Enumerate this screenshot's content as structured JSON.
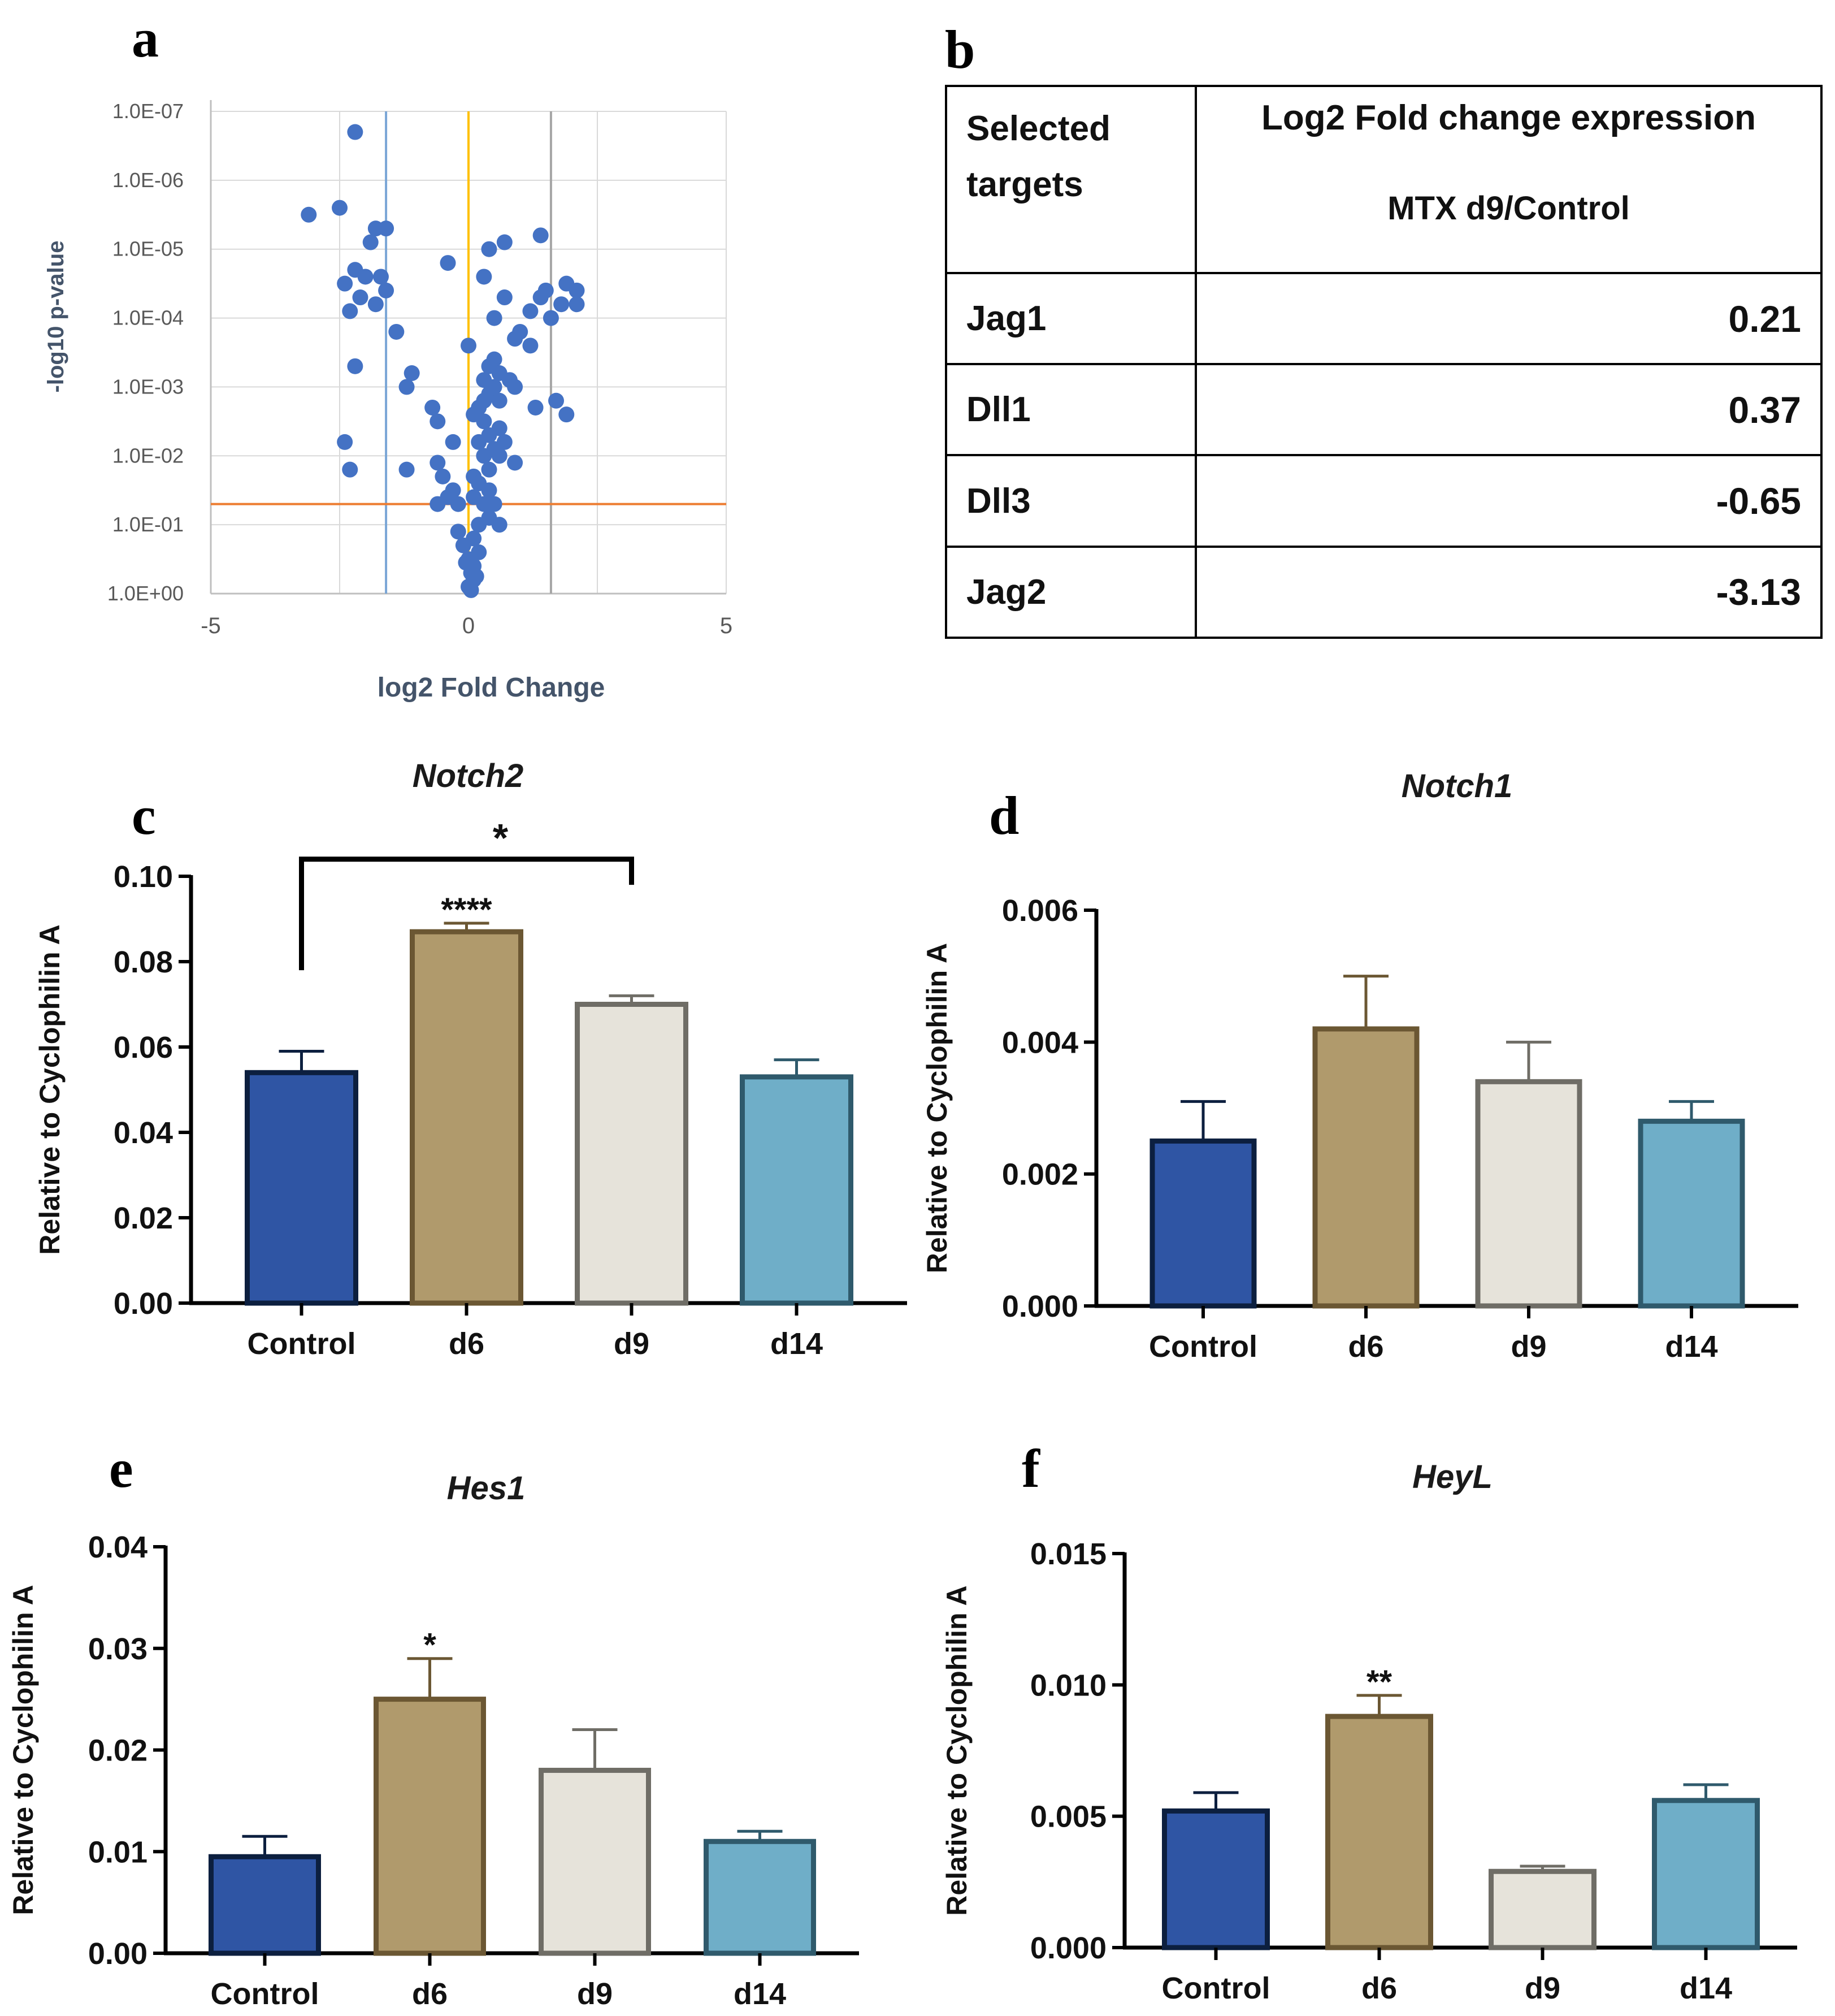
{
  "panels": {
    "a": "a",
    "b": "b",
    "c": "c",
    "d": "d",
    "e": "e",
    "f": "f"
  },
  "table_b": {
    "header_col1": "Selected targets",
    "header_col2": "Log2 Fold change expression",
    "header_col2_sub": "MTX d9/Control",
    "rows": [
      {
        "target": "Jag1",
        "value": "0.21"
      },
      {
        "target": "Dll1",
        "value": "0.37"
      },
      {
        "target": "Dll3",
        "value": "-0.65"
      },
      {
        "target": "Jag2",
        "value": "-3.13"
      }
    ]
  },
  "colors": {
    "volcano_points": "#4472c4",
    "volcano_grid": "#d9d9d9",
    "threshold_blue": "#7aa6d6",
    "threshold_yellow": "#ffc000",
    "threshold_gray": "#a6a6a6",
    "threshold_orange": "#ed7d31",
    "axis_label_volcano": "#44546a",
    "bar_control": "#2f55a4",
    "bar_d6": "#b09a6c",
    "bar_d9": "#e6e3da",
    "bar_d14": "#6faec8"
  },
  "chart_data": [
    {
      "id": "a",
      "type": "scatter",
      "title": "",
      "xlabel": "log2 Fold Change",
      "ylabel": "-log10 p-value",
      "xlim": [
        -5,
        5
      ],
      "ylim": [
        0,
        7
      ],
      "xticks": [
        "-5",
        "0",
        "5"
      ],
      "yticks": [
        "1.0E+00",
        "1.0E-01",
        "1.0E-02",
        "1.0E-03",
        "1.0E-04",
        "1.0E-05",
        "1.0E-06",
        "1.0E-07"
      ],
      "vlines": [
        -1.6,
        0,
        1.6
      ],
      "hline": 1.3,
      "points": [
        [
          -2.2,
          6.7
        ],
        [
          -2.5,
          5.6
        ],
        [
          -3.1,
          5.5
        ],
        [
          -1.8,
          5.3
        ],
        [
          -1.6,
          5.3
        ],
        [
          -1.9,
          5.1
        ],
        [
          -2.2,
          4.7
        ],
        [
          -2.0,
          4.6
        ],
        [
          -1.7,
          4.6
        ],
        [
          -2.4,
          4.5
        ],
        [
          -2.1,
          4.3
        ],
        [
          -1.6,
          4.4
        ],
        [
          -1.8,
          4.2
        ],
        [
          -2.3,
          4.1
        ],
        [
          -1.4,
          3.8
        ],
        [
          -2.2,
          3.3
        ],
        [
          -1.1,
          3.2
        ],
        [
          -1.2,
          3.0
        ],
        [
          -2.4,
          2.2
        ],
        [
          -2.3,
          1.8
        ],
        [
          -1.2,
          1.8
        ],
        [
          -0.7,
          2.7
        ],
        [
          -0.6,
          2.5
        ],
        [
          -0.6,
          1.9
        ],
        [
          -0.3,
          2.2
        ],
        [
          -0.5,
          1.7
        ],
        [
          -0.4,
          1.4
        ],
        [
          -0.6,
          1.3
        ],
        [
          -0.2,
          1.3
        ],
        [
          -0.3,
          1.5
        ],
        [
          -0.4,
          4.8
        ],
        [
          0.4,
          5.0
        ],
        [
          0.7,
          5.1
        ],
        [
          1.4,
          5.2
        ],
        [
          0.3,
          4.6
        ],
        [
          0.7,
          4.3
        ],
        [
          0.5,
          4.0
        ],
        [
          0.0,
          3.6
        ],
        [
          1.4,
          4.3
        ],
        [
          1.5,
          4.4
        ],
        [
          1.9,
          4.5
        ],
        [
          2.1,
          4.4
        ],
        [
          2.1,
          4.2
        ],
        [
          1.8,
          4.2
        ],
        [
          1.2,
          4.1
        ],
        [
          1.6,
          4.0
        ],
        [
          1.0,
          3.8
        ],
        [
          0.9,
          3.7
        ],
        [
          1.2,
          3.6
        ],
        [
          0.5,
          3.4
        ],
        [
          0.4,
          3.3
        ],
        [
          0.6,
          3.2
        ],
        [
          0.3,
          3.1
        ],
        [
          0.8,
          3.1
        ],
        [
          0.5,
          3.0
        ],
        [
          0.4,
          2.9
        ],
        [
          0.3,
          2.8
        ],
        [
          0.6,
          2.8
        ],
        [
          0.2,
          2.7
        ],
        [
          0.9,
          3.0
        ],
        [
          1.3,
          2.7
        ],
        [
          1.7,
          2.8
        ],
        [
          1.9,
          2.6
        ],
        [
          0.1,
          2.6
        ],
        [
          0.3,
          2.5
        ],
        [
          0.6,
          2.4
        ],
        [
          0.4,
          2.3
        ],
        [
          0.2,
          2.2
        ],
        [
          0.7,
          2.2
        ],
        [
          0.5,
          2.1
        ],
        [
          0.3,
          2.0
        ],
        [
          0.6,
          2.0
        ],
        [
          0.9,
          1.9
        ],
        [
          0.4,
          1.8
        ],
        [
          0.1,
          1.7
        ],
        [
          0.2,
          1.6
        ],
        [
          0.4,
          1.5
        ],
        [
          0.1,
          1.4
        ],
        [
          0.3,
          1.3
        ],
        [
          0.5,
          1.3
        ],
        [
          0.4,
          1.1
        ],
        [
          0.6,
          1.0
        ],
        [
          0.2,
          1.0
        ],
        [
          -0.2,
          0.9
        ],
        [
          0.1,
          0.8
        ],
        [
          -0.1,
          0.7
        ],
        [
          0.2,
          0.6
        ],
        [
          0.0,
          0.5
        ],
        [
          0.1,
          0.4
        ],
        [
          0.05,
          0.3
        ],
        [
          0.1,
          0.2
        ],
        [
          0.0,
          0.1
        ],
        [
          0.05,
          0.05
        ],
        [
          0.15,
          0.25
        ],
        [
          -0.05,
          0.45
        ]
      ]
    },
    {
      "id": "c",
      "type": "bar",
      "title": "Notch2",
      "ylabel": "Relative to Cyclophilin A",
      "categories": [
        "Control",
        "d6",
        "d9",
        "d14"
      ],
      "values": [
        0.054,
        0.087,
        0.07,
        0.053
      ],
      "errors": [
        0.005,
        0.002,
        0.002,
        0.004
      ],
      "ylim": [
        0,
        0.1
      ],
      "yticks": [
        "0.00",
        "0.02",
        "0.04",
        "0.06",
        "0.08",
        "0.10"
      ],
      "significance": [
        "",
        "****",
        "",
        ""
      ],
      "bracket": {
        "from": "Control",
        "to": "d9",
        "label": "*"
      }
    },
    {
      "id": "d",
      "type": "bar",
      "title": "Notch1",
      "ylabel": "Relative to Cyclophilin A",
      "categories": [
        "Control",
        "d6",
        "d9",
        "d14"
      ],
      "values": [
        0.0025,
        0.0042,
        0.0034,
        0.0028
      ],
      "errors": [
        0.0006,
        0.0008,
        0.0006,
        0.0003
      ],
      "ylim": [
        0,
        0.006
      ],
      "yticks": [
        "0.000",
        "0.002",
        "0.004",
        "0.006"
      ],
      "significance": [
        "",
        "",
        "",
        ""
      ]
    },
    {
      "id": "e",
      "type": "bar",
      "title": "Hes1",
      "ylabel": "Relative to Cyclophilin A",
      "categories": [
        "Control",
        "d6",
        "d9",
        "d14"
      ],
      "values": [
        0.0095,
        0.025,
        0.018,
        0.011
      ],
      "errors": [
        0.002,
        0.004,
        0.004,
        0.001
      ],
      "ylim": [
        0,
        0.04
      ],
      "yticks": [
        "0.00",
        "0.01",
        "0.02",
        "0.03",
        "0.04"
      ],
      "significance": [
        "",
        "*",
        "",
        ""
      ]
    },
    {
      "id": "f",
      "type": "bar",
      "title": "HeyL",
      "ylabel": "Relative to Cyclophilin A",
      "categories": [
        "Control",
        "d6",
        "d9",
        "d14"
      ],
      "values": [
        0.0052,
        0.0088,
        0.0029,
        0.0056
      ],
      "errors": [
        0.0007,
        0.0008,
        0.0002,
        0.0006
      ],
      "ylim": [
        0,
        0.015
      ],
      "yticks": [
        "0.000",
        "0.005",
        "0.010",
        "0.015"
      ],
      "significance": [
        "",
        "**",
        "",
        ""
      ]
    }
  ]
}
